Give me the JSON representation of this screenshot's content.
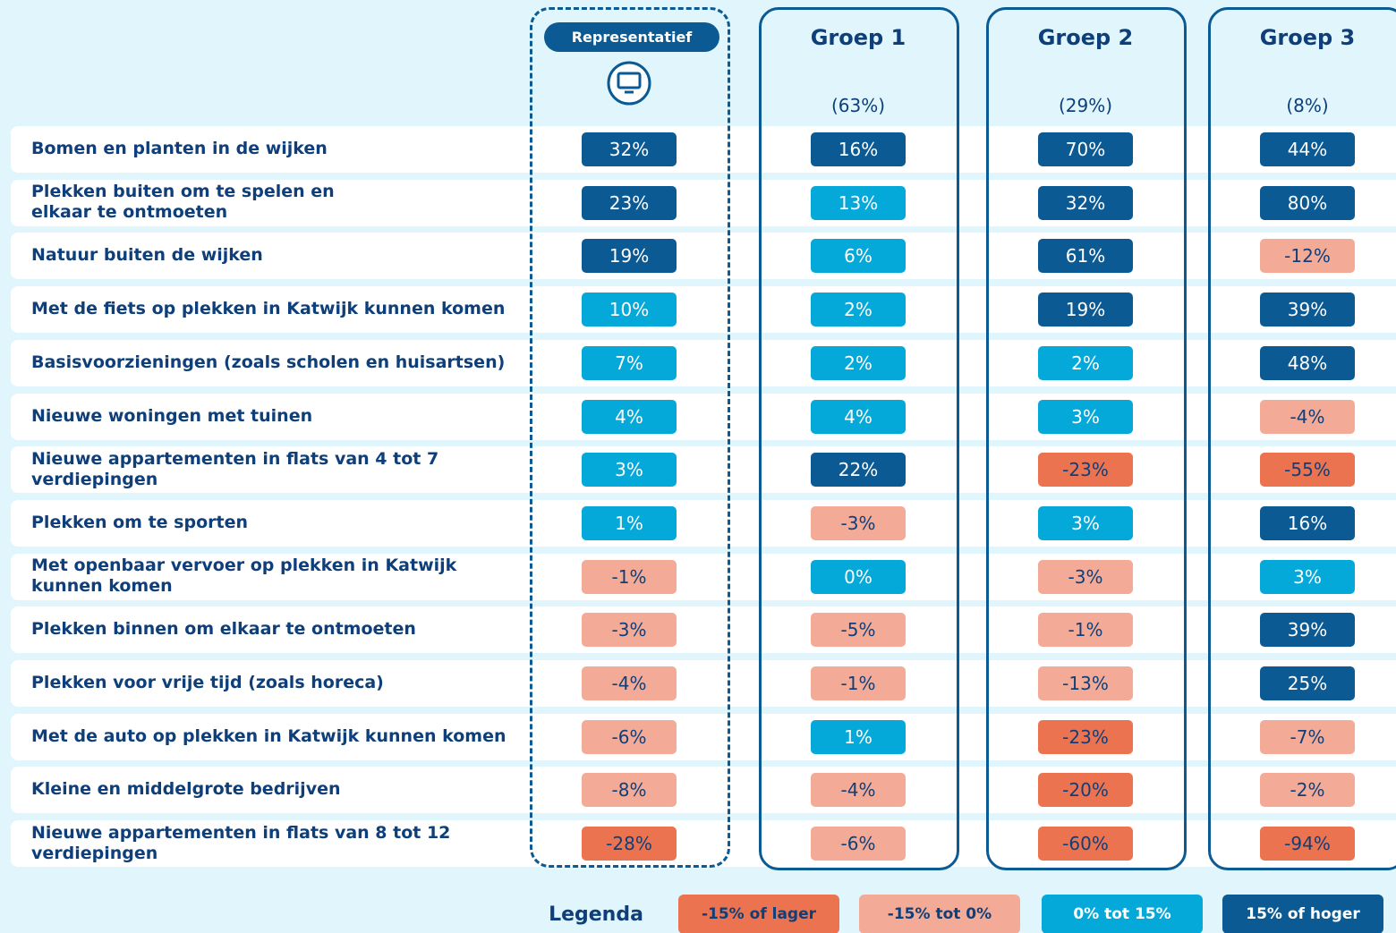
{
  "columns": [
    {
      "title": "Representatief"
    },
    {
      "title": "Groep 1",
      "share": "(63%)"
    },
    {
      "title": "Groep 2",
      "share": "(29%)"
    },
    {
      "title": "Groep 3",
      "share": "(8%)"
    }
  ],
  "rows": [
    {
      "label": [
        "Bomen en planten in de wijken"
      ],
      "cells": [
        "32%",
        "16%",
        "70%",
        "44%"
      ]
    },
    {
      "label": [
        "Plekken buiten om te spelen en",
        "elkaar te ontmoeten"
      ],
      "cells": [
        "23%",
        "13%",
        "32%",
        "80%"
      ]
    },
    {
      "label": [
        "Natuur buiten de wijken"
      ],
      "cells": [
        "19%",
        "6%",
        "61%",
        "-12%"
      ]
    },
    {
      "label": [
        "Met de fiets op plekken in Katwijk kunnen komen"
      ],
      "cells": [
        "10%",
        "2%",
        "19%",
        "39%"
      ]
    },
    {
      "label": [
        "Basisvoorzieningen (zoals scholen en huisartsen)"
      ],
      "cells": [
        "7%",
        "2%",
        "2%",
        "48%"
      ]
    },
    {
      "label": [
        "Nieuwe woningen met tuinen"
      ],
      "cells": [
        "4%",
        "4%",
        "3%",
        "-4%"
      ]
    },
    {
      "label": [
        "Nieuwe appartementen in flats van 4 tot 7",
        "verdiepingen"
      ],
      "cells": [
        "3%",
        "22%",
        "-23%",
        "-55%"
      ]
    },
    {
      "label": [
        "Plekken om te sporten"
      ],
      "cells": [
        "1%",
        "-3%",
        "3%",
        "16%"
      ]
    },
    {
      "label": [
        "Met openbaar vervoer op plekken in Katwijk",
        "kunnen komen"
      ],
      "cells": [
        "-1%",
        "0%",
        "-3%",
        "3%"
      ]
    },
    {
      "label": [
        "Plekken binnen om elkaar te ontmoeten"
      ],
      "cells": [
        "-3%",
        "-5%",
        "-1%",
        "39%"
      ]
    },
    {
      "label": [
        "Plekken voor vrije tijd (zoals horeca)"
      ],
      "cells": [
        "-4%",
        "-1%",
        "-13%",
        "25%"
      ]
    },
    {
      "label": [
        "Met de auto op plekken in Katwijk kunnen komen"
      ],
      "cells": [
        "-6%",
        "1%",
        "-23%",
        "-7%"
      ]
    },
    {
      "label": [
        "Kleine en middelgrote bedrijven"
      ],
      "cells": [
        "-8%",
        "-4%",
        "-20%",
        "-2%"
      ]
    },
    {
      "label": [
        "Nieuwe appartementen in flats van 8 tot 12",
        "verdiepingen"
      ],
      "cells": [
        "-28%",
        "-6%",
        "-60%",
        "-94%"
      ]
    }
  ],
  "legend": {
    "title": "Legenda",
    "items": [
      {
        "label": "-15% of lager",
        "color": "#ec7350"
      },
      {
        "label": "-15% tot 0%",
        "color": "#f3ab97"
      },
      {
        "label": "0% tot 15%",
        "color": "#05a9d9"
      },
      {
        "label": "15% of hoger",
        "color": "#0b5a94"
      }
    ]
  }
}
